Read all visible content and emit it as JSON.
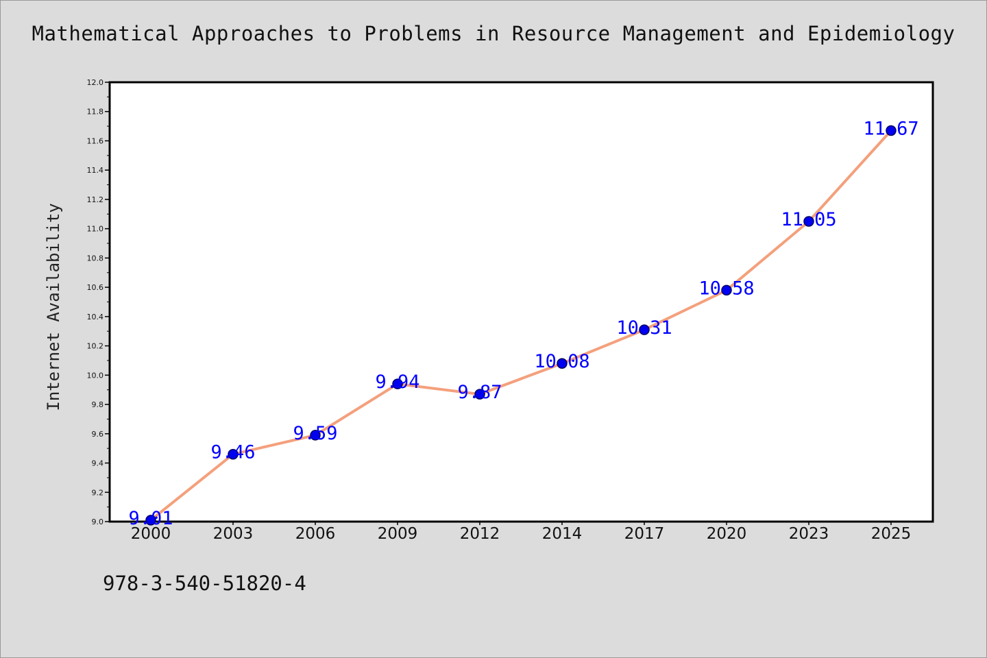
{
  "chart_data": {
    "type": "line",
    "title": "Mathematical Approaches to Problems in Resource Management and Epidemiology",
    "xlabel": "",
    "ylabel": "Internet Availability",
    "categories": [
      "2000",
      "2003",
      "2006",
      "2009",
      "2012",
      "2014",
      "2017",
      "2020",
      "2023",
      "2025"
    ],
    "series": [
      {
        "values": [
          9.01,
          9.46,
          9.59,
          9.94,
          9.87,
          10.08,
          10.31,
          10.58,
          11.05,
          11.67
        ]
      }
    ],
    "data_labels": [
      "9.01",
      "9.46",
      "9.59",
      "9.94",
      "9.87",
      "10.08",
      "10.31",
      "10.58",
      "11.05",
      "11.67"
    ],
    "ylim": [
      9.0,
      12.0
    ],
    "yticks": [
      "9.0",
      "9.2",
      "9.4",
      "9.6",
      "9.8",
      "10.0",
      "10.2",
      "10.4",
      "10.6",
      "10.8",
      "11.0",
      "11.2",
      "11.4",
      "11.6",
      "11.8",
      "12.0"
    ],
    "grid": false,
    "legend": "none",
    "colors": {
      "line": "#f4a07c",
      "marker": "#0000ee",
      "marker_edge": "#000066",
      "label": "#0000ff",
      "axis": "#000000",
      "background": "#dcdcdc",
      "plot_background": "#ffffff"
    }
  },
  "footer": {
    "isbn": "978-3-540-51820-4"
  }
}
